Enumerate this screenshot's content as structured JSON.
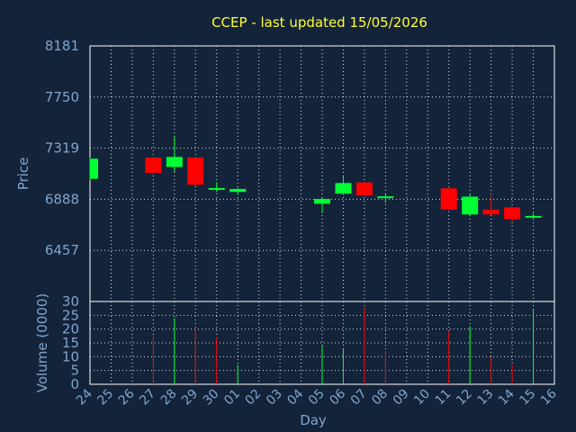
{
  "chart_data": {
    "type": "candlestick",
    "title": "CCEP - last updated 15/05/2026",
    "price_axis": {
      "label": "Price",
      "ylim": [
        6026,
        8181
      ],
      "ticks": [
        8181,
        7750,
        7319,
        6888,
        6457
      ]
    },
    "volume_axis": {
      "label": "Volume (0000)",
      "ylim": [
        0,
        30
      ],
      "ticks": [
        30,
        25,
        20,
        15,
        10,
        5,
        0
      ]
    },
    "x_axis": {
      "label": "Day",
      "categories": [
        "24",
        "25",
        "26",
        "27",
        "28",
        "29",
        "30",
        "01",
        "02",
        "03",
        "04",
        "05",
        "06",
        "07",
        "08",
        "09",
        "10",
        "11",
        "12",
        "13",
        "14",
        "15",
        "16"
      ]
    },
    "grid": true,
    "colors": {
      "up": "#00ff33",
      "down": "#ff0000",
      "text": "#7fa6cc",
      "title": "#ffff33",
      "background": "#13233a"
    },
    "candles": [
      {
        "day": "24",
        "open": 7060,
        "close": 7230,
        "high": 7240,
        "low": 7050
      },
      {
        "day": "27",
        "open": 7240,
        "close": 7110,
        "high": 7245,
        "low": 7100
      },
      {
        "day": "28",
        "open": 7160,
        "close": 7245,
        "high": 7420,
        "low": 7120
      },
      {
        "day": "29",
        "open": 7240,
        "close": 7010,
        "high": 7250,
        "low": 7000
      },
      {
        "day": "30",
        "open": 6975,
        "close": 6975,
        "high": 7030,
        "low": 6950
      },
      {
        "day": "01",
        "open": 6950,
        "close": 6975,
        "high": 6985,
        "low": 6925
      },
      {
        "day": "05",
        "open": 6850,
        "close": 6890,
        "high": 6900,
        "low": 6770
      },
      {
        "day": "06",
        "open": 6935,
        "close": 7025,
        "high": 7080,
        "low": 6925
      },
      {
        "day": "07",
        "open": 7030,
        "close": 6920,
        "high": 7035,
        "low": 6915
      },
      {
        "day": "08",
        "open": 6905,
        "close": 6905,
        "high": 6940,
        "low": 6860
      },
      {
        "day": "11",
        "open": 6980,
        "close": 6800,
        "high": 6985,
        "low": 6795
      },
      {
        "day": "12",
        "open": 6760,
        "close": 6910,
        "high": 6930,
        "low": 6755
      },
      {
        "day": "13",
        "open": 6800,
        "close": 6760,
        "high": 6920,
        "low": 6755
      },
      {
        "day": "14",
        "open": 6820,
        "close": 6720,
        "high": 6825,
        "low": 6700
      },
      {
        "day": "15",
        "open": 6730,
        "close": 6740,
        "high": 6770,
        "low": 6715
      }
    ],
    "volume": [
      {
        "day": "27",
        "value": 17.5,
        "dir": "down"
      },
      {
        "day": "28",
        "value": 24,
        "dir": "up"
      },
      {
        "day": "29",
        "value": 20,
        "dir": "down"
      },
      {
        "day": "30",
        "value": 17,
        "dir": "down"
      },
      {
        "day": "01",
        "value": 7,
        "dir": "up"
      },
      {
        "day": "05",
        "value": 14,
        "dir": "up"
      },
      {
        "day": "06",
        "value": 13,
        "dir": "up"
      },
      {
        "day": "07",
        "value": 28,
        "dir": "down"
      },
      {
        "day": "08",
        "value": 12,
        "dir": "down"
      },
      {
        "day": "11",
        "value": 19,
        "dir": "down"
      },
      {
        "day": "12",
        "value": 21,
        "dir": "up"
      },
      {
        "day": "13",
        "value": 10,
        "dir": "down"
      },
      {
        "day": "14",
        "value": 7,
        "dir": "down"
      },
      {
        "day": "15",
        "value": 27,
        "dir": "up"
      }
    ]
  }
}
